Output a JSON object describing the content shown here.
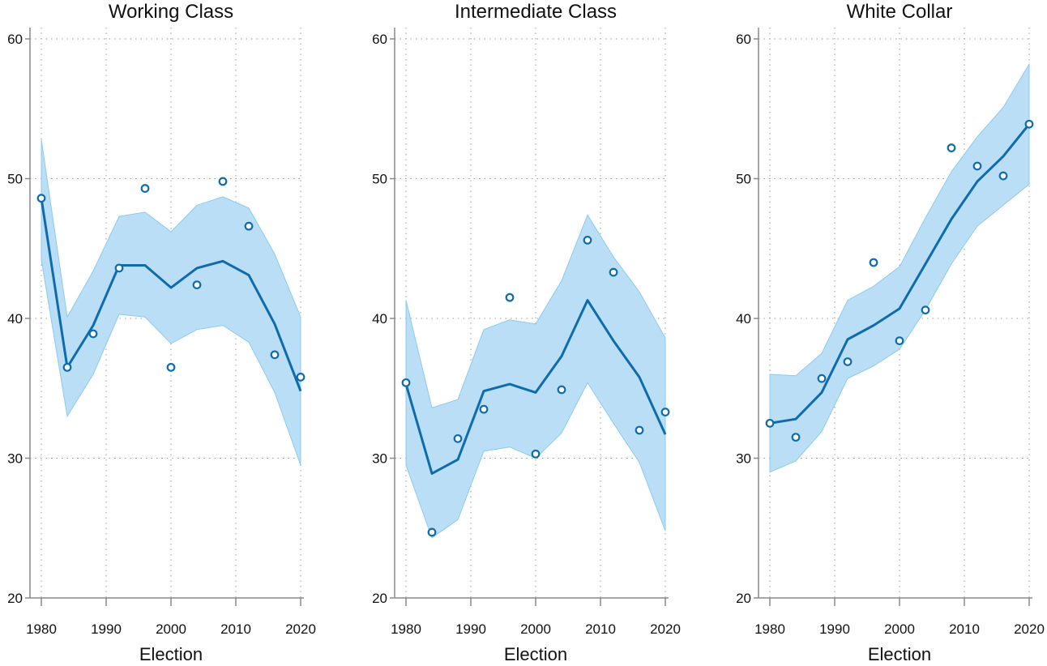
{
  "chart_data": [
    {
      "type": "line",
      "title": "Working Class",
      "xlabel": "Election",
      "ylabel": "",
      "xlim": [
        1980,
        2020
      ],
      "ylim": [
        20,
        60
      ],
      "xticks": [
        1980,
        1990,
        2000,
        2010,
        2020
      ],
      "yticks": [
        20,
        30,
        40,
        50,
        60
      ],
      "x": [
        1980,
        1984,
        1988,
        1992,
        1996,
        2000,
        2004,
        2008,
        2012,
        2016,
        2020
      ],
      "observed": [
        48.6,
        36.5,
        38.9,
        43.6,
        49.3,
        36.5,
        42.4,
        49.8,
        46.6,
        37.4,
        35.8
      ],
      "fitted": [
        48.6,
        36.5,
        39.5,
        43.8,
        43.8,
        42.2,
        43.6,
        44.1,
        43.1,
        39.6,
        34.8
      ],
      "lower": [
        44.2,
        33.0,
        36.0,
        40.3,
        40.1,
        38.2,
        39.2,
        39.5,
        38.3,
        34.7,
        29.5
      ],
      "upper": [
        52.8,
        40.1,
        43.4,
        47.3,
        47.6,
        46.2,
        48.1,
        48.7,
        47.9,
        44.6,
        40.1
      ],
      "colors": {
        "line": "#0e6cad",
        "band": "#b9def5",
        "band_edge": "#8ccbee"
      }
    },
    {
      "type": "line",
      "title": "Intermediate Class",
      "xlabel": "Election",
      "ylabel": "",
      "xlim": [
        1980,
        2020
      ],
      "ylim": [
        20,
        60
      ],
      "xticks": [
        1980,
        1990,
        2000,
        2010,
        2020
      ],
      "yticks": [
        20,
        30,
        40,
        50,
        60
      ],
      "x": [
        1980,
        1984,
        1988,
        1992,
        1996,
        2000,
        2004,
        2008,
        2012,
        2016,
        2020
      ],
      "observed": [
        35.4,
        24.7,
        31.4,
        33.5,
        41.5,
        30.3,
        34.9,
        45.6,
        43.3,
        32.0,
        33.3
      ],
      "fitted": [
        35.3,
        28.9,
        29.9,
        34.8,
        35.3,
        34.7,
        37.3,
        41.3,
        38.4,
        35.8,
        31.7
      ],
      "lower": [
        29.5,
        24.3,
        25.6,
        30.5,
        30.8,
        30.0,
        31.8,
        35.4,
        32.5,
        29.7,
        24.8
      ],
      "upper": [
        41.3,
        33.6,
        34.2,
        39.2,
        39.9,
        39.6,
        42.7,
        47.4,
        44.4,
        41.9,
        38.6
      ],
      "colors": {
        "line": "#0e6cad",
        "band": "#b9def5",
        "band_edge": "#8ccbee"
      }
    },
    {
      "type": "line",
      "title": "White Collar",
      "xlabel": "Election",
      "ylabel": "",
      "xlim": [
        1980,
        2020
      ],
      "ylim": [
        20,
        60
      ],
      "xticks": [
        1980,
        1990,
        2000,
        2010,
        2020
      ],
      "yticks": [
        20,
        30,
        40,
        50,
        60
      ],
      "x": [
        1980,
        1984,
        1988,
        1992,
        1996,
        2000,
        2004,
        2008,
        2012,
        2016,
        2020
      ],
      "observed": [
        32.5,
        31.5,
        35.7,
        36.9,
        44.0,
        38.4,
        40.6,
        52.2,
        50.9,
        50.2,
        53.9
      ],
      "fitted": [
        32.5,
        32.8,
        34.7,
        38.5,
        39.5,
        40.7,
        43.9,
        47.1,
        49.8,
        51.6,
        53.9
      ],
      "lower": [
        29.0,
        29.8,
        31.9,
        35.7,
        36.6,
        37.8,
        40.6,
        43.9,
        46.6,
        48.1,
        49.6
      ],
      "upper": [
        36.0,
        35.9,
        37.5,
        41.3,
        42.3,
        43.7,
        47.2,
        50.5,
        53.0,
        55.1,
        58.2
      ],
      "colors": {
        "line": "#0e6cad",
        "band": "#b9def5",
        "band_edge": "#8ccbee"
      }
    }
  ]
}
